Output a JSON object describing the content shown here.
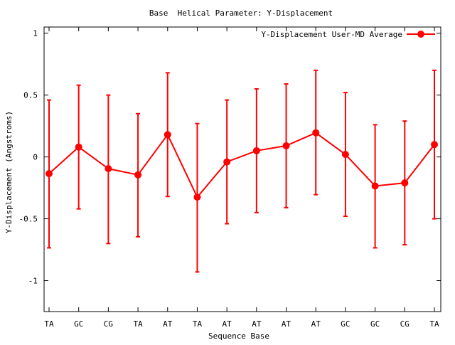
{
  "chart_data": {
    "type": "line",
    "title": "Base  Helical Parameter: Y-Displacement",
    "xlabel": "Sequence Base",
    "ylabel": "Y-Displacement (Angstroms)",
    "ylim": [
      -1.25,
      1.05
    ],
    "yticks": [
      1,
      0.5,
      0,
      -0.5,
      -1
    ],
    "ytick_labels": [
      "1",
      "0.5",
      "0",
      "-0.5",
      "-1"
    ],
    "categories": [
      "TA",
      "GC",
      "CG",
      "TA",
      "AT",
      "TA",
      "AT",
      "AT",
      "AT",
      "AT",
      "GC",
      "GC",
      "CG",
      "TA"
    ],
    "grid": false,
    "legend_position": "top-right",
    "series": [
      {
        "name": "Y-Displacement User-MD Average",
        "color": "#ff0000",
        "marker": "filled-circle",
        "error_bars": true,
        "values": [
          -0.135,
          0.08,
          -0.095,
          -0.145,
          0.18,
          -0.325,
          -0.04,
          0.05,
          0.09,
          0.195,
          0.02,
          -0.235,
          -0.21,
          0.1
        ],
        "err_high": [
          0.46,
          0.58,
          0.5,
          0.35,
          0.68,
          0.27,
          0.46,
          0.55,
          0.59,
          0.7,
          0.52,
          0.26,
          0.29,
          0.7
        ],
        "err_low": [
          -0.735,
          -0.42,
          -0.7,
          -0.645,
          -0.32,
          -0.93,
          -0.54,
          -0.45,
          -0.41,
          -0.305,
          -0.48,
          -0.735,
          -0.71,
          -0.5
        ]
      }
    ]
  }
}
